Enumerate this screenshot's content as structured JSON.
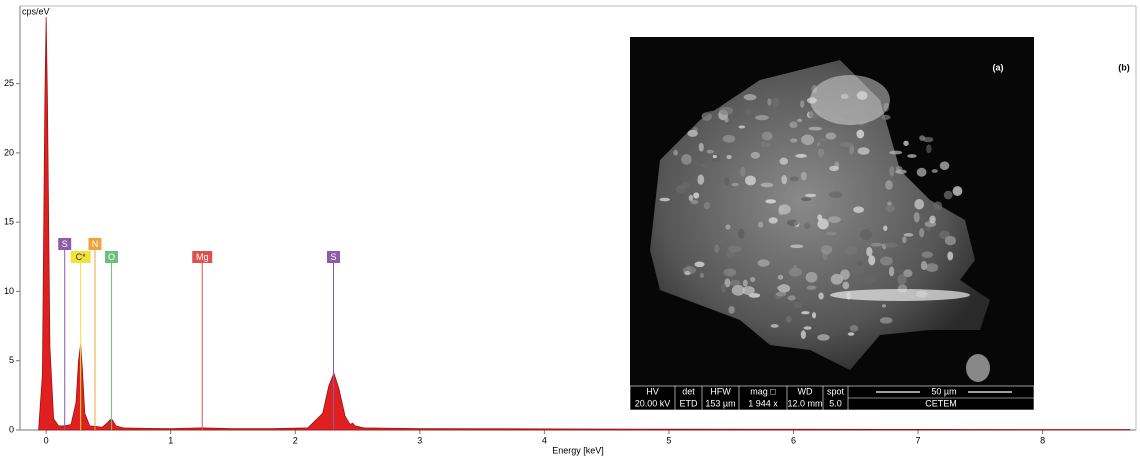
{
  "chart_data": {
    "type": "area",
    "y_label": "cps/eV",
    "x_label": "Energy [keV]",
    "x": [
      -0.06,
      -0.03,
      -0.01,
      0,
      0.01,
      0.03,
      0.06,
      0.1,
      0.15,
      0.2,
      0.24,
      0.26,
      0.277,
      0.29,
      0.31,
      0.35,
      0.4,
      0.45,
      0.49,
      0.51,
      0.525,
      0.54,
      0.56,
      0.62,
      0.8,
      1.0,
      1.25,
      1.5,
      1.8,
      2.1,
      2.22,
      2.27,
      2.31,
      2.35,
      2.4,
      2.44,
      2.46,
      2.48,
      2.55,
      3.0,
      4.0,
      5.0,
      6.0,
      7.0,
      8.0,
      8.7
    ],
    "values": [
      0.1,
      4,
      24,
      29.8,
      24,
      6,
      0.8,
      0.3,
      0.3,
      0.4,
      2,
      5,
      6.2,
      4.5,
      1.2,
      0.3,
      0.25,
      0.2,
      0.5,
      0.7,
      0.8,
      0.6,
      0.3,
      0.15,
      0.12,
      0.1,
      0.15,
      0.1,
      0.1,
      0.15,
      1.2,
      3.2,
      4.1,
      3,
      1,
      0.4,
      0.5,
      0.3,
      0.15,
      0.1,
      0.08,
      0.06,
      0.05,
      0.04,
      0.03,
      0.03
    ],
    "color": "#e02020",
    "xlim": [
      -0.21,
      8.75
    ],
    "xticks": [
      0,
      1,
      2,
      3,
      4,
      5,
      6,
      7,
      8
    ],
    "ylim": [
      0,
      30.6
    ],
    "yticks": [
      0,
      5,
      10,
      15,
      20,
      25
    ],
    "peak_labels": [
      {
        "label": "S",
        "energy": 0.149,
        "color": "#8e5ba8"
      },
      {
        "label": "C*",
        "energy": 0.277,
        "color": "#f2e23c"
      },
      {
        "label": "N",
        "energy": 0.392,
        "color": "#f0a23c"
      },
      {
        "label": "O",
        "energy": 0.525,
        "color": "#6cbf7a"
      },
      {
        "label": "Mg",
        "energy": 1.253,
        "color": "#e05050"
      },
      {
        "label": "S",
        "energy": 2.307,
        "color": "#8e5ba8"
      }
    ],
    "panel_labels": [
      "(a)",
      "(b)"
    ],
    "inset": {
      "headers": [
        "HV",
        "det",
        "HFW",
        "mag □",
        "WD",
        "spot"
      ],
      "values": [
        "20.00 kV",
        "ETD",
        "153 µm",
        "1 944 x",
        "12.0 mm",
        "5.0"
      ],
      "scale_bar": "50 µm",
      "lab": "CETEM"
    }
  }
}
